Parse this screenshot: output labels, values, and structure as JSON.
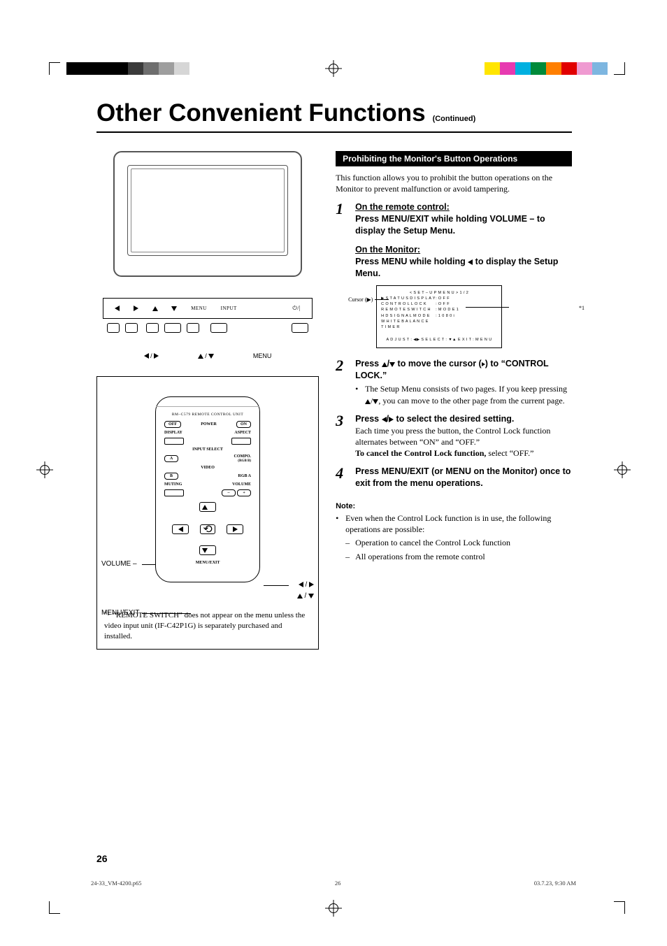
{
  "colorbars": {
    "left": [
      "#000000",
      "#000000",
      "#000000",
      "#000000",
      "#3a3a3a",
      "#6e6e6e",
      "#9e9e9e",
      "#d6d6d6"
    ],
    "right": [
      "#ffe500",
      "#e73ab0",
      "#00b0e0",
      "#008a3a",
      "#ff7f00",
      "#e10000",
      "#ef9ad1",
      "#7db6e0"
    ]
  },
  "title": "Other Convenient Functions",
  "title_suffix": "(Continued)",
  "monitor": {
    "ctrl_menu": "MENU",
    "ctrl_input": "INPUT",
    "labels": {
      "lr": "◀ / ▶",
      "ud": "▲ / ▼",
      "menu": "MENU"
    }
  },
  "remote": {
    "model": "RM–C579  REMOTE  CONTROL  UNIT",
    "off": "OFF",
    "power": "POWER",
    "on": "ON",
    "display": "DISPLAY",
    "aspect": "ASPECT",
    "input_select": "INPUT  SELECT",
    "a": "A",
    "compo": "COMPO.",
    "rgbb": "(RGB B)",
    "video": "VIDEO",
    "b": "B",
    "rgba": "RGB A",
    "muting": "MUTING",
    "volume": "VOLUME",
    "menu_exit": "MENU/EXIT",
    "lead_volume": "VOLUME –",
    "lead_menu": "MENU/EXIT",
    "lead_lr": "◀ / ▶",
    "lead_ud": "▲ / ▼"
  },
  "footnote": {
    "mark": "*1",
    "text": "“REMOTE SWITCH” does not appear on the menu unless the video input unit (IF-C42P1G) is separately purchased and installed."
  },
  "section_bar": "Prohibiting the Monitor's Button Operations",
  "intro": "This function allows you to prohibit the button operations on the Monitor to prevent malfunction or avoid tampering.",
  "step1": {
    "h1": "On the remote control:",
    "l1": "Press MENU/EXIT while holding VOLUME – to display the Setup Menu.",
    "h2": "On the Monitor:",
    "l2a": "Press MENU while holding ",
    "l2b": " to display the Setup Menu."
  },
  "osd": {
    "cursor_label": "Cursor (▶)",
    "star": "*1",
    "header": "< S E T – U P   M E N U >      1 / 2",
    "rows": [
      {
        "k": "S T A T U S   D I S P L A Y",
        "v": ":   O F F"
      },
      {
        "k": "C O N T R O L   L O C K",
        "v": ":   O F F"
      },
      {
        "k": "R E M O T E   S W I T C H",
        "v": ":   M O D E 1"
      },
      {
        "k": "H D   S I G N A L   M O D E",
        "v": ":   1 0 8 0 i"
      },
      {
        "k": "W H I T E   B A L A N C E",
        "v": ""
      },
      {
        "k": "T I M E R",
        "v": ""
      }
    ],
    "footer": "A D J U S T : ◀▶   S E L E C T : ▼▲   E X I T : M E N U"
  },
  "step2": {
    "head_a": "Press ",
    "head_b": " to move the cursor (",
    "head_c": ") to “CONTROL LOCK.”",
    "b1a": "The Setup Menu consists of two pages. If you keep pressing ",
    "b1b": ", you can move to the other page from the current page."
  },
  "step3": {
    "head_a": "Press ",
    "head_b": " to select the desired setting.",
    "l1": "Each time you press the button, the Control Lock function alternates between “ON” and “OFF.”",
    "l2a": "To cancel the Control Lock function,",
    "l2b": " select “OFF.”"
  },
  "step4": {
    "head": "Press MENU/EXIT (or MENU on the Monitor) once to exit from the menu operations."
  },
  "note": {
    "h": "Note:",
    "b1": "Even when the Control Lock function is in use, the following operations are possible:",
    "s1": "Operation to cancel the Control Lock function",
    "s2": "All operations from the remote control"
  },
  "pagenum": "26",
  "footer": {
    "file": "24-33_VM-4200.p65",
    "page": "26",
    "date": "03.7.23, 9:30 AM"
  }
}
